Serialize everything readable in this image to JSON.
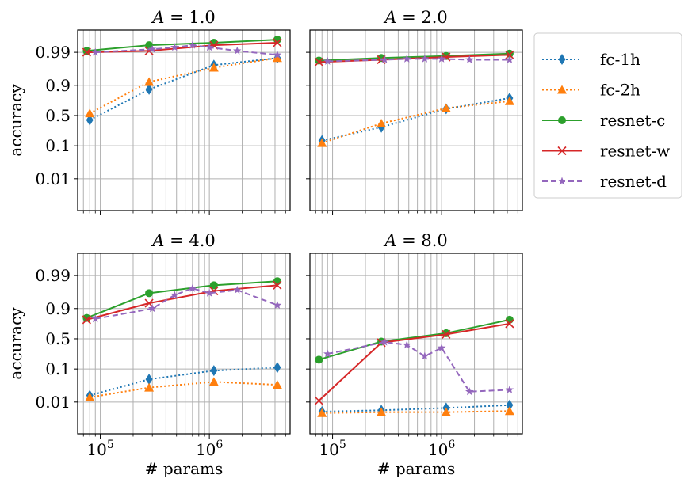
{
  "figure": {
    "ylabel": "accuracy",
    "xlabel": "# params",
    "yticks": [
      {
        "value": 0.01,
        "label": "0.01"
      },
      {
        "value": 0.1,
        "label": "0.1"
      },
      {
        "value": 0.5,
        "label": "0.5"
      },
      {
        "value": 0.9,
        "label": "0.9"
      },
      {
        "value": 0.99,
        "label": "0.99"
      }
    ],
    "xticks": [
      {
        "value": 100000,
        "base": "10",
        "exp": "5"
      },
      {
        "value": 1000000,
        "base": "10",
        "exp": "6"
      }
    ],
    "legend": [
      {
        "key": "fc1h",
        "label": "fc-1h"
      },
      {
        "key": "fc2h",
        "label": "fc-2h"
      },
      {
        "key": "resc",
        "label": "resnet-c"
      },
      {
        "key": "resw",
        "label": "resnet-w"
      },
      {
        "key": "resd",
        "label": "resnet-d"
      }
    ]
  },
  "series_style": {
    "fc1h": {
      "color": "#1f77b4",
      "marker": "diamond",
      "dash": "dotted"
    },
    "fc2h": {
      "color": "#ff7f0e",
      "marker": "triangle",
      "dash": "dotted"
    },
    "resc": {
      "color": "#2ca02c",
      "marker": "circle",
      "dash": "solid"
    },
    "resw": {
      "color": "#d62728",
      "marker": "x",
      "dash": "solid"
    },
    "resd": {
      "color": "#9467bd",
      "marker": "star",
      "dash": "dashed"
    }
  },
  "chart_data": [
    {
      "type": "line",
      "title": "A = 1.0",
      "title_var": "A",
      "title_rest": " = 1.0",
      "x_scale": "log",
      "y_scale": "logit",
      "xlim": [
        62000,
        5500000
      ],
      "ylim": [
        0.001,
        0.998
      ],
      "series": [
        {
          "key": "fc1h",
          "name": "fc-1h",
          "x": [
            80000,
            280000,
            1100000,
            4200000
          ],
          "y": [
            0.42,
            0.87,
            0.975,
            0.985
          ]
        },
        {
          "key": "fc2h",
          "name": "fc-2h",
          "x": [
            80000,
            280000,
            1100000,
            4200000
          ],
          "y": [
            0.54,
            0.92,
            0.97,
            0.985
          ]
        },
        {
          "key": "resc",
          "name": "resnet-c",
          "x": [
            75000,
            280000,
            1100000,
            4200000
          ],
          "y": [
            0.991,
            0.994,
            0.995,
            0.996
          ]
        },
        {
          "key": "resw",
          "name": "resnet-w",
          "x": [
            75000,
            280000,
            1100000,
            4200000
          ],
          "y": [
            0.99,
            0.991,
            0.994,
            0.995
          ]
        },
        {
          "key": "resd",
          "name": "resnet-d",
          "x": [
            90000,
            300000,
            480000,
            700000,
            1000000,
            1800000,
            4200000
          ],
          "y": [
            0.99,
            0.992,
            0.993,
            0.994,
            0.993,
            0.991,
            0.988
          ]
        }
      ]
    },
    {
      "type": "line",
      "title": "A = 2.0",
      "title_var": "A",
      "title_rest": " = 2.0",
      "x_scale": "log",
      "y_scale": "logit",
      "xlim": [
        62000,
        5500000
      ],
      "ylim": [
        0.001,
        0.998
      ],
      "series": [
        {
          "key": "fc1h",
          "name": "fc-1h",
          "x": [
            80000,
            280000,
            1100000,
            4200000
          ],
          "y": [
            0.14,
            0.3,
            0.62,
            0.78
          ]
        },
        {
          "key": "fc2h",
          "name": "fc-2h",
          "x": [
            80000,
            280000,
            1100000,
            4200000
          ],
          "y": [
            0.12,
            0.36,
            0.63,
            0.74
          ]
        },
        {
          "key": "resc",
          "name": "resnet-c",
          "x": [
            75000,
            280000,
            1100000,
            4200000
          ],
          "y": [
            0.982,
            0.985,
            0.987,
            0.989
          ]
        },
        {
          "key": "resw",
          "name": "resnet-w",
          "x": [
            75000,
            280000,
            1100000,
            4200000
          ],
          "y": [
            0.98,
            0.983,
            0.986,
            0.988
          ]
        },
        {
          "key": "resd",
          "name": "resnet-d",
          "x": [
            90000,
            300000,
            480000,
            700000,
            1000000,
            1800000,
            4200000
          ],
          "y": [
            0.981,
            0.983,
            0.984,
            0.984,
            0.984,
            0.983,
            0.983
          ]
        }
      ]
    },
    {
      "type": "line",
      "title": "A = 4.0",
      "title_var": "A",
      "title_rest": " = 4.0",
      "x_scale": "log",
      "y_scale": "logit",
      "xlim": [
        62000,
        5500000
      ],
      "ylim": [
        0.001,
        0.998
      ],
      "series": [
        {
          "key": "fc1h",
          "name": "fc-1h",
          "x": [
            80000,
            280000,
            1100000,
            4200000
          ],
          "y": [
            0.016,
            0.05,
            0.09,
            0.11
          ]
        },
        {
          "key": "fc2h",
          "name": "fc-2h",
          "x": [
            80000,
            280000,
            1100000,
            4200000
          ],
          "y": [
            0.014,
            0.028,
            0.042,
            0.034
          ]
        },
        {
          "key": "resc",
          "name": "resnet-c",
          "x": [
            75000,
            280000,
            1100000,
            4200000
          ],
          "y": [
            0.82,
            0.965,
            0.98,
            0.985
          ]
        },
        {
          "key": "resw",
          "name": "resnet-w",
          "x": [
            75000,
            280000,
            1100000,
            4200000
          ],
          "y": [
            0.8,
            0.93,
            0.97,
            0.98
          ]
        },
        {
          "key": "resd",
          "name": "resnet-d",
          "x": [
            90000,
            300000,
            480000,
            700000,
            1000000,
            1800000,
            4200000
          ],
          "y": [
            0.81,
            0.9,
            0.96,
            0.975,
            0.965,
            0.972,
            0.92
          ]
        }
      ]
    },
    {
      "type": "line",
      "title": "A = 8.0",
      "title_var": "A",
      "title_rest": " = 8.0",
      "x_scale": "log",
      "y_scale": "logit",
      "xlim": [
        62000,
        5500000
      ],
      "ylim": [
        0.001,
        0.998
      ],
      "series": [
        {
          "key": "fc1h",
          "name": "fc-1h",
          "x": [
            80000,
            280000,
            1100000,
            4200000
          ],
          "y": [
            0.005,
            0.0055,
            0.0065,
            0.008
          ]
        },
        {
          "key": "fc2h",
          "name": "fc-2h",
          "x": [
            80000,
            280000,
            1100000,
            4200000
          ],
          "y": [
            0.0045,
            0.0048,
            0.0048,
            0.0052
          ]
        },
        {
          "key": "resc",
          "name": "resnet-c",
          "x": [
            75000,
            280000,
            1100000,
            4200000
          ],
          "y": [
            0.18,
            0.45,
            0.6,
            0.8
          ]
        },
        {
          "key": "resw",
          "name": "resnet-w",
          "x": [
            75000,
            280000,
            1100000,
            4200000
          ],
          "y": [
            0.011,
            0.43,
            0.58,
            0.75
          ]
        },
        {
          "key": "resd",
          "name": "resnet-d",
          "x": [
            90000,
            300000,
            480000,
            700000,
            1000000,
            1800000,
            4200000
          ],
          "y": [
            0.25,
            0.44,
            0.39,
            0.22,
            0.34,
            0.021,
            0.024
          ]
        }
      ]
    }
  ]
}
